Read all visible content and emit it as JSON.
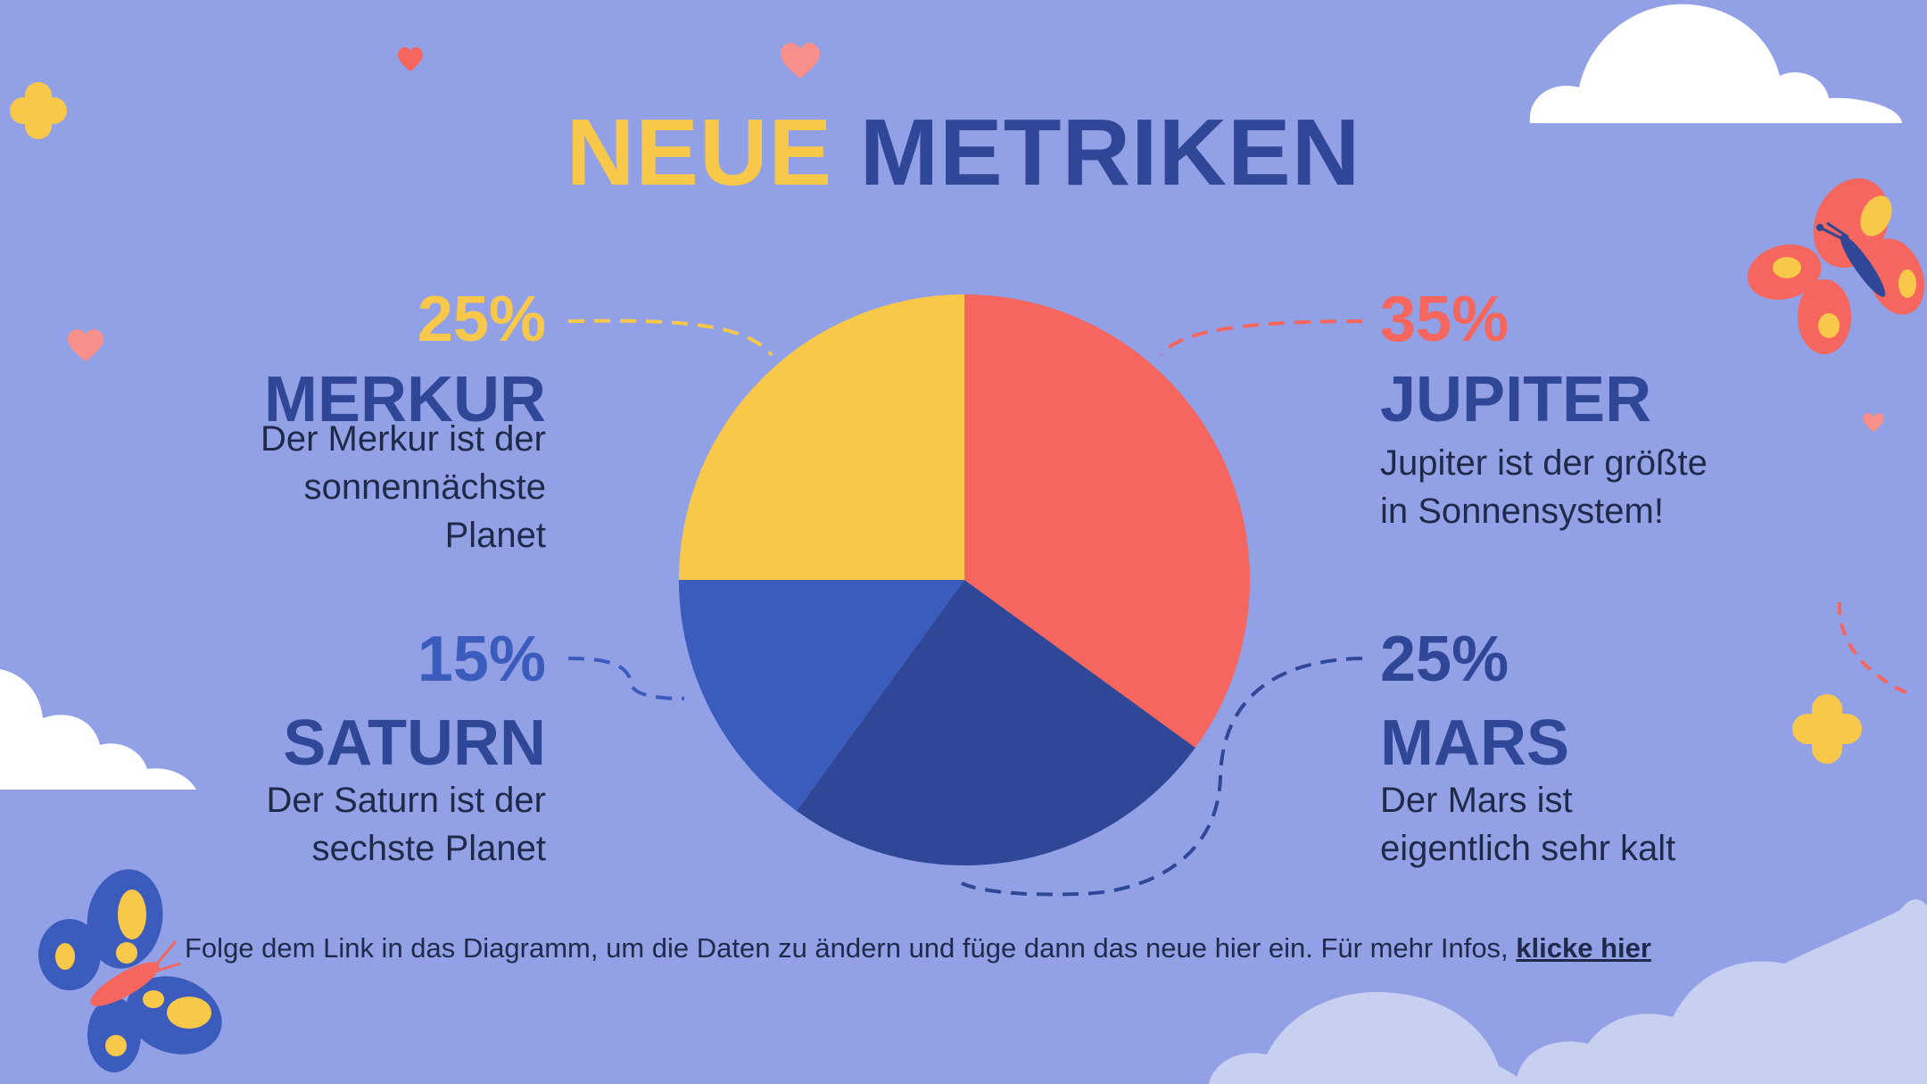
{
  "title": {
    "part1": "NEUE",
    "part2": "METRIKEN"
  },
  "footer": {
    "text": "Folge dem Link in das Diagramm, um die Daten zu ändern und füge dann das neue hier ein. Für mehr Infos, ",
    "link_label": "klicke hier"
  },
  "colors": {
    "background": "#92a1e6",
    "yellow": "#f8c84a",
    "red": "#f4665e",
    "dark_blue": "#2f4796",
    "blue": "#3b5bbd"
  },
  "chart_data": {
    "type": "pie",
    "slices": [
      {
        "name": "JUPITER",
        "label": "35%",
        "value": 35,
        "color": "#f4665e"
      },
      {
        "name": "MARS",
        "label": "25%",
        "value": 25,
        "color": "#2f4796"
      },
      {
        "name": "SATURN",
        "label": "15%",
        "value": 15,
        "color": "#3b5bbd"
      },
      {
        "name": "MERKUR",
        "label": "25%",
        "value": 25,
        "color": "#f8c84a"
      }
    ]
  },
  "annotations": {
    "merkur": {
      "percent": "25%",
      "name": "MERKUR",
      "lines": [
        "Der Merkur ist der",
        "sonnennächste",
        "Planet"
      ]
    },
    "saturn": {
      "percent": "15%",
      "name": "SATURN",
      "lines": [
        "Der Saturn ist der",
        "sechste Planet"
      ]
    },
    "jupiter": {
      "percent": "35%",
      "name": "JUPITER",
      "lines": [
        "Jupiter ist der größte",
        "in Sonnensystem!"
      ]
    },
    "mars": {
      "percent": "25%",
      "name": "MARS",
      "lines": [
        "Der Mars ist",
        "eigentlich sehr kalt"
      ]
    }
  }
}
